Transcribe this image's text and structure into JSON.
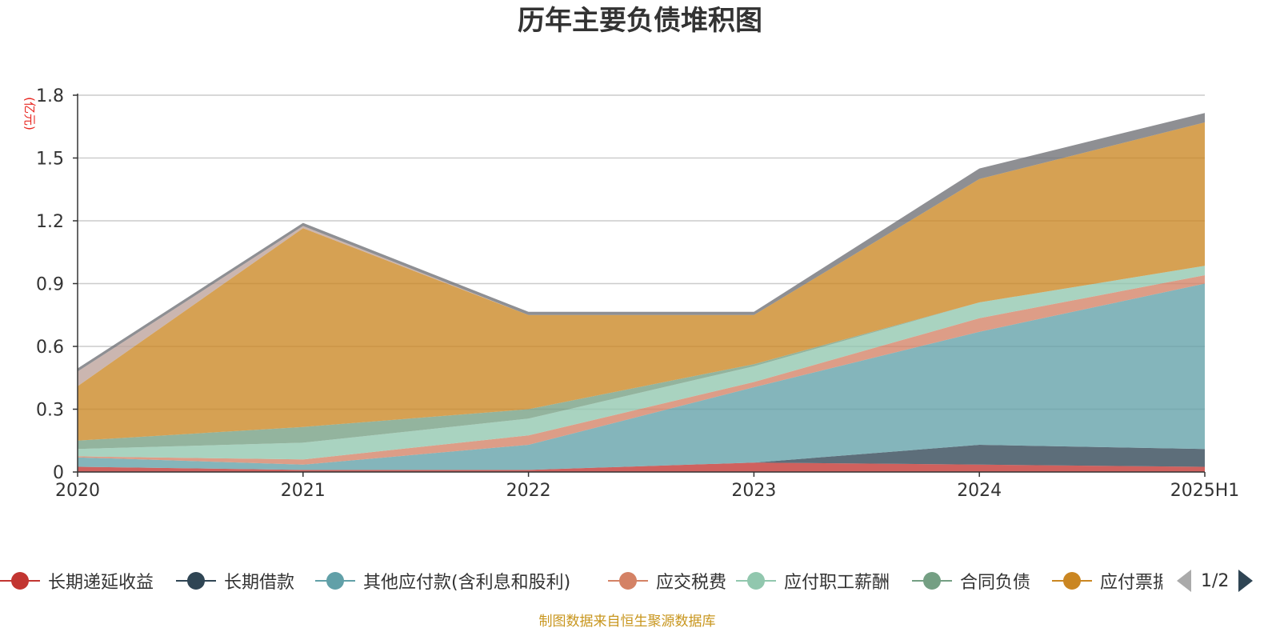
{
  "chart_data": {
    "type": "area",
    "stacked": true,
    "title": "历年主要负债堆积图",
    "unit": "(亿元)",
    "categories": [
      "2020",
      "2021",
      "2022",
      "2023",
      "2024",
      "2025H1"
    ],
    "ylim": [
      0,
      1.8
    ],
    "yticks": [
      "0",
      "0.3",
      "0.6",
      "0.9",
      "1.2",
      "1.5",
      "1.8"
    ],
    "grid": true,
    "legend_position": "bottom",
    "series": [
      {
        "name": "长期递延收益",
        "color": "#c23531",
        "values": [
          0.025,
          0.01,
          0.01,
          0.045,
          0.035,
          0.025
        ]
      },
      {
        "name": "长期借款",
        "color": "#2f4554",
        "values": [
          0.0,
          0.0,
          0.0,
          0.0,
          0.095,
          0.085
        ]
      },
      {
        "name": "其他应付款(含利息和股利)",
        "color": "#61a0a8",
        "values": [
          0.045,
          0.025,
          0.12,
          0.36,
          0.54,
          0.79
        ]
      },
      {
        "name": "应交税费",
        "color": "#d48265",
        "values": [
          0.005,
          0.025,
          0.045,
          0.025,
          0.065,
          0.04
        ]
      },
      {
        "name": "应付职工薪酬",
        "color": "#91c7ae",
        "values": [
          0.035,
          0.08,
          0.08,
          0.075,
          0.075,
          0.045
        ]
      },
      {
        "name": "合同负债",
        "color": "#749f83",
        "values": [
          0.04,
          0.075,
          0.045,
          0.01,
          0.0,
          0.0
        ]
      },
      {
        "name": "应付票据",
        "color": "#ca8622",
        "values": [
          0.26,
          0.95,
          0.45,
          0.235,
          0.59,
          0.685
        ]
      },
      {
        "name": "",
        "color": "#bda29a",
        "values": [
          0.07,
          0.01,
          0.0,
          0.0,
          0.0,
          0.0
        ]
      },
      {
        "name": "",
        "color": "#6e7074",
        "values": [
          0.015,
          0.015,
          0.015,
          0.015,
          0.05,
          0.045
        ]
      }
    ]
  },
  "legend": {
    "page_indicator": "1/2"
  },
  "source_text": "制图数据来自恒生聚源数据库"
}
